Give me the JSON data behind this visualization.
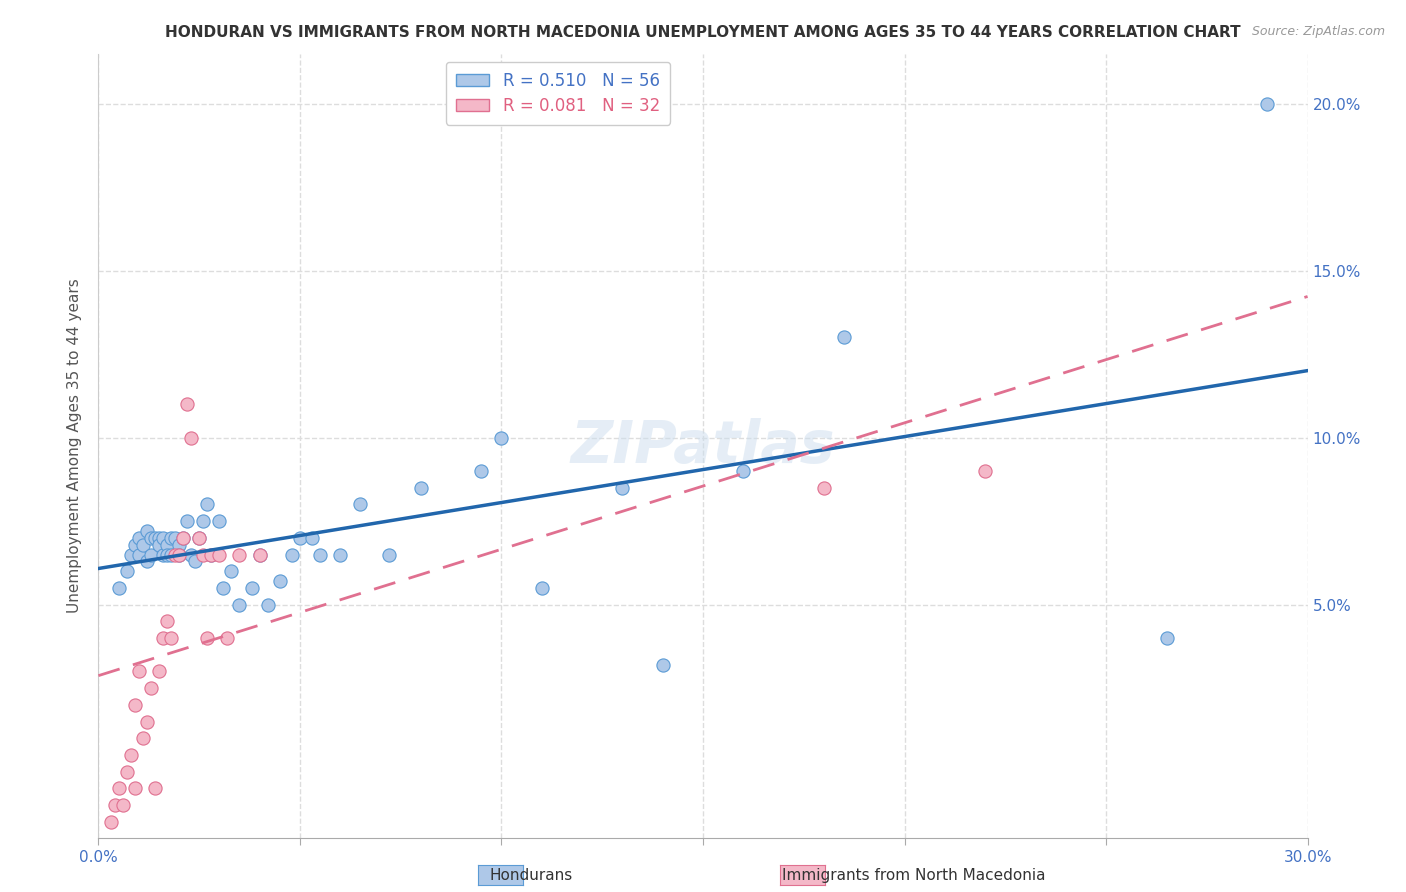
{
  "title": "HONDURAN VS IMMIGRANTS FROM NORTH MACEDONIA UNEMPLOYMENT AMONG AGES 35 TO 44 YEARS CORRELATION CHART",
  "source": "Source: ZipAtlas.com",
  "ylabel": "Unemployment Among Ages 35 to 44 years",
  "xlim": [
    0,
    0.3
  ],
  "ylim": [
    -0.02,
    0.215
  ],
  "xtick_positions": [
    0.0,
    0.05,
    0.1,
    0.15,
    0.2,
    0.25,
    0.3
  ],
  "xticklabels": [
    "0.0%",
    "",
    "",
    "",
    "",
    "",
    "30.0%"
  ],
  "ytick_positions": [
    0.05,
    0.1,
    0.15,
    0.2
  ],
  "yticklabels": [
    "5.0%",
    "10.0%",
    "15.0%",
    "20.0%"
  ],
  "R_blue": 0.51,
  "N_blue": 56,
  "R_pink": 0.081,
  "N_pink": 32,
  "blue_face_color": "#AEC8E8",
  "blue_edge_color": "#5B9BD5",
  "pink_face_color": "#F4B8C8",
  "pink_edge_color": "#E07090",
  "blue_line_color": "#2166AC",
  "pink_line_color": "#E07090",
  "legend_label_blue": "Hondurans",
  "legend_label_pink": "Immigrants from North Macedonia",
  "blue_scatter_x": [
    0.005,
    0.007,
    0.008,
    0.009,
    0.01,
    0.01,
    0.011,
    0.012,
    0.012,
    0.013,
    0.013,
    0.014,
    0.015,
    0.015,
    0.016,
    0.016,
    0.017,
    0.017,
    0.018,
    0.018,
    0.019,
    0.02,
    0.02,
    0.021,
    0.022,
    0.023,
    0.024,
    0.025,
    0.026,
    0.027,
    0.028,
    0.03,
    0.031,
    0.033,
    0.035,
    0.038,
    0.04,
    0.042,
    0.045,
    0.048,
    0.05,
    0.053,
    0.055,
    0.06,
    0.065,
    0.072,
    0.08,
    0.095,
    0.1,
    0.11,
    0.13,
    0.14,
    0.16,
    0.185,
    0.265,
    0.29
  ],
  "blue_scatter_y": [
    0.055,
    0.06,
    0.065,
    0.068,
    0.07,
    0.065,
    0.068,
    0.063,
    0.072,
    0.07,
    0.065,
    0.07,
    0.07,
    0.068,
    0.07,
    0.065,
    0.068,
    0.065,
    0.07,
    0.065,
    0.07,
    0.068,
    0.065,
    0.07,
    0.075,
    0.065,
    0.063,
    0.07,
    0.075,
    0.08,
    0.065,
    0.075,
    0.055,
    0.06,
    0.05,
    0.055,
    0.065,
    0.05,
    0.057,
    0.065,
    0.07,
    0.07,
    0.065,
    0.065,
    0.08,
    0.065,
    0.085,
    0.09,
    0.1,
    0.055,
    0.085,
    0.032,
    0.09,
    0.13,
    0.04,
    0.2
  ],
  "pink_scatter_x": [
    0.003,
    0.004,
    0.005,
    0.006,
    0.007,
    0.008,
    0.009,
    0.009,
    0.01,
    0.011,
    0.012,
    0.013,
    0.014,
    0.015,
    0.016,
    0.017,
    0.018,
    0.019,
    0.02,
    0.021,
    0.022,
    0.023,
    0.025,
    0.026,
    0.027,
    0.028,
    0.03,
    0.032,
    0.035,
    0.04,
    0.18,
    0.22
  ],
  "pink_scatter_y": [
    -0.015,
    -0.01,
    -0.005,
    -0.01,
    0.0,
    0.005,
    0.02,
    -0.005,
    0.03,
    0.01,
    0.015,
    0.025,
    -0.005,
    0.03,
    0.04,
    0.045,
    0.04,
    0.065,
    0.065,
    0.07,
    0.11,
    0.1,
    0.07,
    0.065,
    0.04,
    0.065,
    0.065,
    0.04,
    0.065,
    0.065,
    0.085,
    0.09
  ],
  "watermark": "ZIPatlas",
  "background_color": "#ffffff",
  "grid_color": "#dddddd"
}
